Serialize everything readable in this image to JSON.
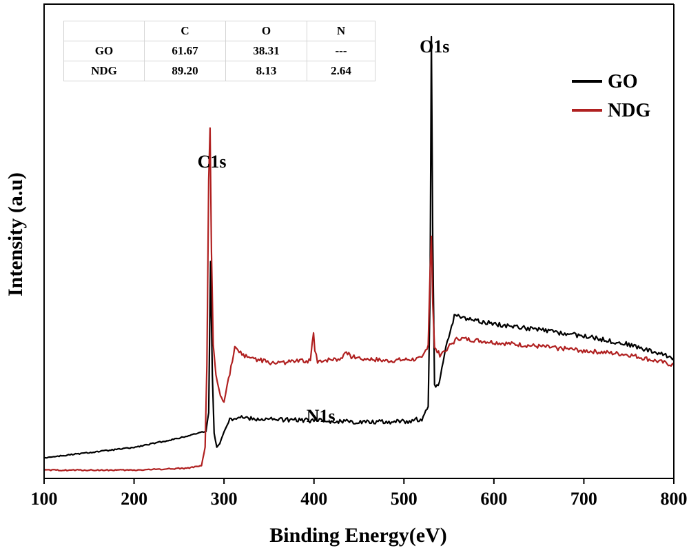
{
  "chart_data": {
    "type": "line",
    "title": "",
    "xlabel": "Binding Energy(eV)",
    "ylabel": "Intensity (a.u)",
    "xlim": [
      100,
      800
    ],
    "xticks": [
      "100",
      "200",
      "300",
      "400",
      "500",
      "600",
      "700",
      "800"
    ],
    "y_scale": "arbitrary",
    "grid": false,
    "legend_position": "top-right",
    "series": [
      {
        "name": "GO",
        "color": "#000000",
        "x": [
          100,
          150,
          200,
          250,
          280,
          283,
          285,
          287,
          289,
          292,
          297,
          305,
          315,
          330,
          360,
          400,
          450,
          500,
          520,
          527,
          529,
          530.5,
          532,
          534,
          538,
          545,
          556,
          575,
          600,
          650,
          700,
          750,
          800
        ],
        "y": [
          1.0,
          1.25,
          1.5,
          1.95,
          2.3,
          3.2,
          10.5,
          5.0,
          2.2,
          1.5,
          1.9,
          2.8,
          3.0,
          2.9,
          2.85,
          2.8,
          2.75,
          2.75,
          2.9,
          3.5,
          9.0,
          21.5,
          11.5,
          4.5,
          4.4,
          6.0,
          7.9,
          7.7,
          7.5,
          7.2,
          6.9,
          6.5,
          5.85
        ]
      },
      {
        "name": "NDG",
        "color": "#b02020",
        "x": [
          100,
          200,
          260,
          275,
          279,
          281,
          283,
          284.5,
          286,
          288,
          291,
          296,
          300,
          305,
          312,
          320,
          350,
          396,
          398,
          399.5,
          401,
          404,
          430,
          436,
          440,
          480,
          520,
          527,
          529,
          530.5,
          532,
          534,
          540,
          560,
          600,
          650,
          700,
          750,
          800
        ],
        "y": [
          0.4,
          0.4,
          0.5,
          0.6,
          1.5,
          5.5,
          14.5,
          17.0,
          11.0,
          6.5,
          5.0,
          4.0,
          3.8,
          4.8,
          6.3,
          6.0,
          5.6,
          5.7,
          6.5,
          7.0,
          6.2,
          5.7,
          5.8,
          6.2,
          5.9,
          5.7,
          5.8,
          6.5,
          10.0,
          11.8,
          8.5,
          6.3,
          6.0,
          6.8,
          6.6,
          6.4,
          6.2,
          6.0,
          5.5
        ]
      }
    ],
    "annotations": [
      {
        "text": "C1s",
        "x": 285
      },
      {
        "text": "O1s",
        "x": 531
      },
      {
        "text": "N1s",
        "x": 400
      }
    ],
    "table": {
      "headers": [
        "",
        "C",
        "O",
        "N"
      ],
      "rows": [
        [
          "GO",
          "61.67",
          "38.31",
          "---"
        ],
        [
          "NDG",
          "89.20",
          "8.13",
          "2.64"
        ]
      ]
    }
  }
}
